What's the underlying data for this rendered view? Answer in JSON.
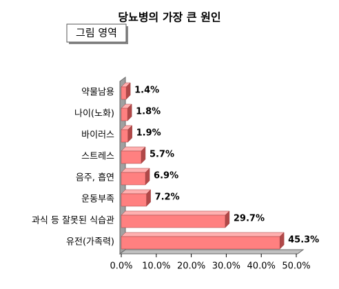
{
  "chart_data": {
    "type": "bar3d-horizontal",
    "title": "당뇨병의 가장 큰 원인",
    "annotation": "그림 영역",
    "categories": [
      "약물남용",
      "나이(노화)",
      "바이러스",
      "스트레스",
      "음주, 흡연",
      "운동부족",
      "과식 등 잘못된 식습관",
      "유전(가족력)"
    ],
    "values": [
      1.4,
      1.8,
      1.9,
      5.7,
      6.9,
      7.2,
      29.7,
      45.3
    ],
    "value_labels": [
      "1.4%",
      "1.8%",
      "1.9%",
      "5.7%",
      "6.9%",
      "7.2%",
      "29.7%",
      "45.3%"
    ],
    "color": "#ff8080",
    "xlim": [
      0,
      50
    ],
    "xticks": [
      {
        "value": 0,
        "label": "0.0%"
      },
      {
        "value": 10,
        "label": "10.0%"
      },
      {
        "value": 20,
        "label": "20.0%"
      },
      {
        "value": 30,
        "label": "30.0%"
      },
      {
        "value": 40,
        "label": "40.0%"
      },
      {
        "value": 50,
        "label": "50.0%"
      }
    ]
  }
}
